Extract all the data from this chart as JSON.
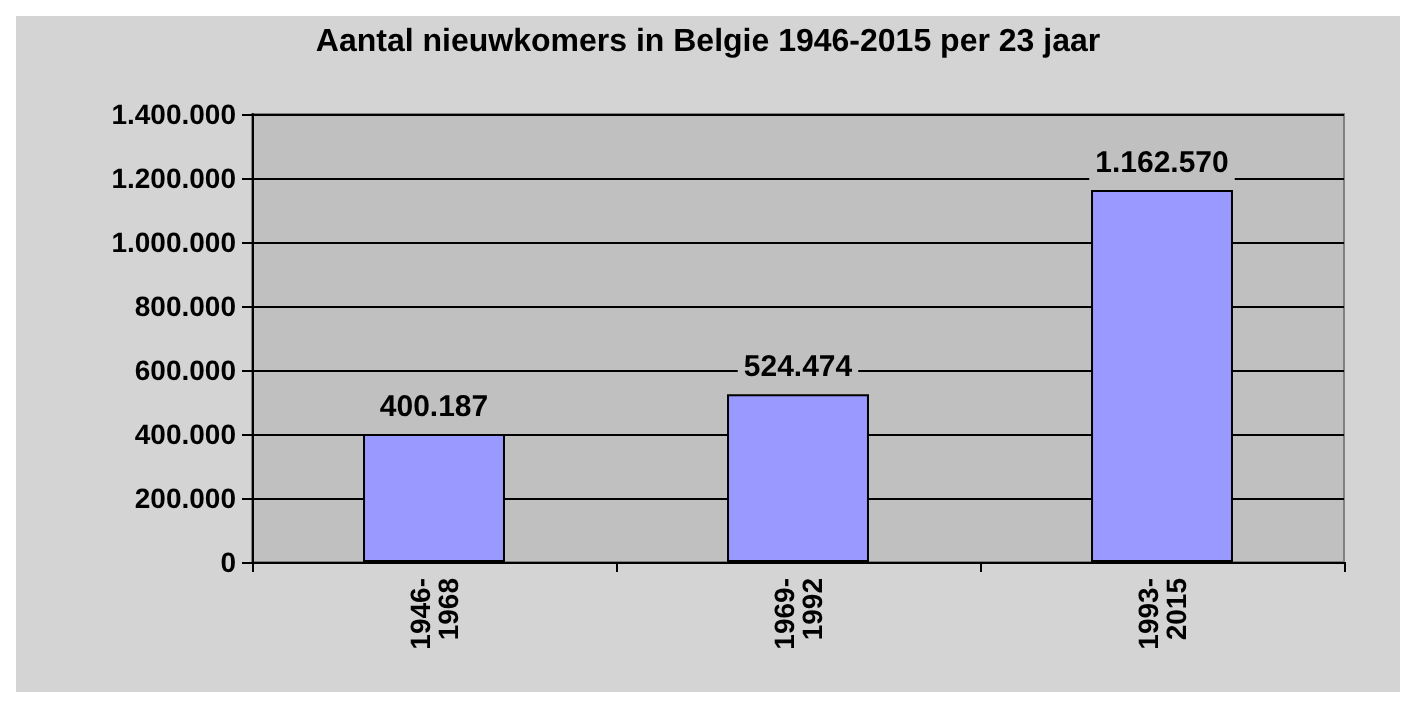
{
  "chart_data": {
    "type": "bar",
    "title": "Aantal nieuwkomers in Belgie 1946-2015 per 23 jaar",
    "categories": [
      "1946-1968",
      "1969-1992",
      "1993-2015"
    ],
    "values": [
      400187,
      524474,
      1162570
    ],
    "value_labels": [
      "400.187",
      "524.474",
      "1.162.570"
    ],
    "color": "#9999ff",
    "ylim": [
      0,
      1400000
    ],
    "yticks": [
      {
        "value": 0,
        "label": "0"
      },
      {
        "value": 200000,
        "label": "200.000"
      },
      {
        "value": 400000,
        "label": "400.000"
      },
      {
        "value": 600000,
        "label": "600.000"
      },
      {
        "value": 800000,
        "label": "800.000"
      },
      {
        "value": 1000000,
        "label": "1.000.000"
      },
      {
        "value": 1200000,
        "label": "1.200.000"
      },
      {
        "value": 1400000,
        "label": "1.400.000"
      }
    ],
    "grid": "y"
  }
}
